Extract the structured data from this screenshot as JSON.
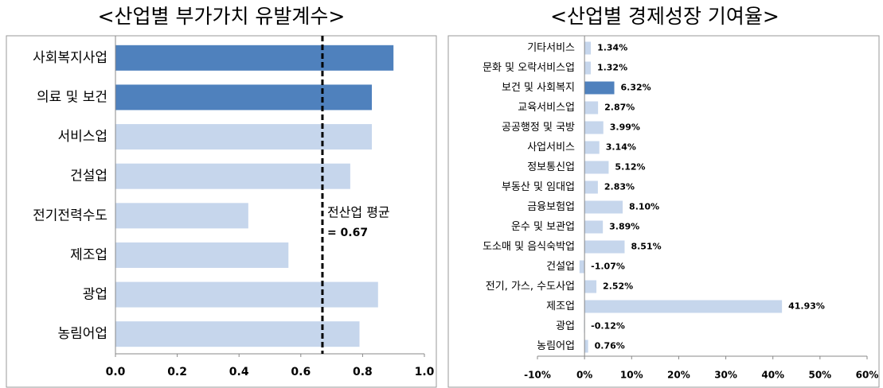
{
  "chart_data": [
    {
      "type": "hbar",
      "title": "<산업별 부가가치 유발계수>",
      "categories": [
        "사회복지사업",
        "의료 및 보건",
        "서비스업",
        "건설업",
        "전기전력수도",
        "제조업",
        "광업",
        "농림어업"
      ],
      "values": [
        0.9,
        0.83,
        0.83,
        0.76,
        0.43,
        0.56,
        0.85,
        0.79
      ],
      "colors": [
        "#4f81bd",
        "#4f81bd",
        "#c6d6ec",
        "#c6d6ec",
        "#c6d6ec",
        "#c6d6ec",
        "#c6d6ec",
        "#c6d6ec"
      ],
      "xlim": [
        0,
        1
      ],
      "xticks": [
        {
          "value": 0,
          "label": "0.0"
        },
        0.2,
        0.4,
        0.6,
        0.8,
        {
          "value": 1,
          "label": "1.0"
        }
      ],
      "reference_line": {
        "value": 0.67,
        "label": "전산업 평균",
        "value_label": "= 0.67"
      }
    },
    {
      "type": "hbar",
      "title": "<산업별 경제성장 기여율>",
      "categories": [
        "기타서비스",
        "문화 및 오락서비스업",
        "보건 및 사회복지",
        "교육서비스업",
        "공공행정 및 국방",
        "사업서비스",
        "정보통신업",
        "부동산 및 임대업",
        "금융보험업",
        "운수 및 보관업",
        "도소매 및 음식숙박업",
        "건설업",
        "전기, 가스, 수도사업",
        "제조업",
        "광업",
        "농림어업"
      ],
      "values": [
        1.34,
        1.32,
        6.32,
        2.87,
        3.99,
        3.14,
        5.12,
        2.83,
        8.1,
        3.89,
        8.51,
        -1.07,
        2.52,
        41.93,
        -0.12,
        0.76
      ],
      "value_labels": [
        "1.34%",
        "1.32%",
        "6.32%",
        "2.87%",
        "3.99%",
        "3.14%",
        "5.12%",
        "2.83%",
        "8.10%",
        "3.89%",
        "8.51%",
        "-1.07%",
        "2.52%",
        "41.93%",
        "-0.12%",
        "0.76%"
      ],
      "colors": [
        "#c6d6ec",
        "#c6d6ec",
        "#4f81bd",
        "#c6d6ec",
        "#c6d6ec",
        "#c6d6ec",
        "#c6d6ec",
        "#c6d6ec",
        "#c6d6ec",
        "#c6d6ec",
        "#c6d6ec",
        "#c6d6ec",
        "#c6d6ec",
        "#c6d6ec",
        "#c6d6ec",
        "#c6d6ec"
      ],
      "xlim": [
        -10,
        60
      ],
      "xticks": [
        {
          "value": -10,
          "label": "-10%"
        },
        {
          "value": 0,
          "label": "0%"
        },
        {
          "value": 10,
          "label": "10%"
        },
        {
          "value": 20,
          "label": "20%"
        },
        {
          "value": 30,
          "label": "30%"
        },
        {
          "value": 40,
          "label": "40%"
        },
        {
          "value": 50,
          "label": "50%"
        },
        {
          "value": 60,
          "label": "60%"
        }
      ]
    }
  ]
}
